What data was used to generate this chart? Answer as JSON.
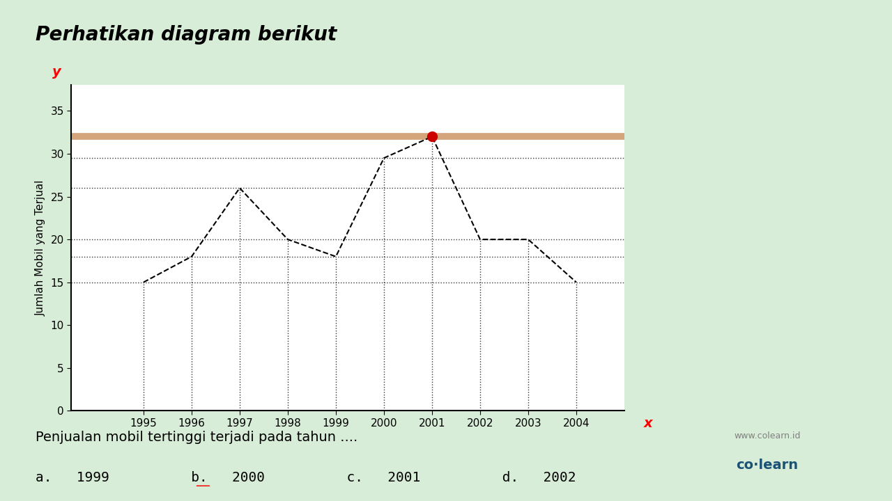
{
  "title": "Perhatikan diagram berikut",
  "ylabel": "Jumlah Mobil yang Terjual",
  "xlabel_label": "x",
  "ylabel_label": "y",
  "years": [
    1995,
    1996,
    1997,
    1998,
    1999,
    2000,
    2001,
    2002,
    2003,
    2004
  ],
  "values": [
    15,
    18,
    26,
    20,
    18,
    29.5,
    32,
    20,
    20,
    15
  ],
  "highlight_year": 2001,
  "highlight_value": 32,
  "horizontal_line_y": 32,
  "horizontal_line_color": "#D4A57A",
  "red_dot_color": "#CC0000",
  "line_color": "#000000",
  "dashed_grid_color": "#000000",
  "ylim": [
    0,
    38
  ],
  "yticks": [
    0,
    5,
    10,
    15,
    20,
    25,
    30,
    35
  ],
  "question_text": "Penjualan mobil tertinggi terjadi pada tahun ....",
  "options_text": "a.   1999          b.   2000          c.   2001          d.   2002",
  "bg_color": "#FFFFFF",
  "outer_bg_color": "#D8EDD8",
  "title_fontsize": 20,
  "axis_fontsize": 11,
  "question_fontsize": 14,
  "options_fontsize": 14
}
